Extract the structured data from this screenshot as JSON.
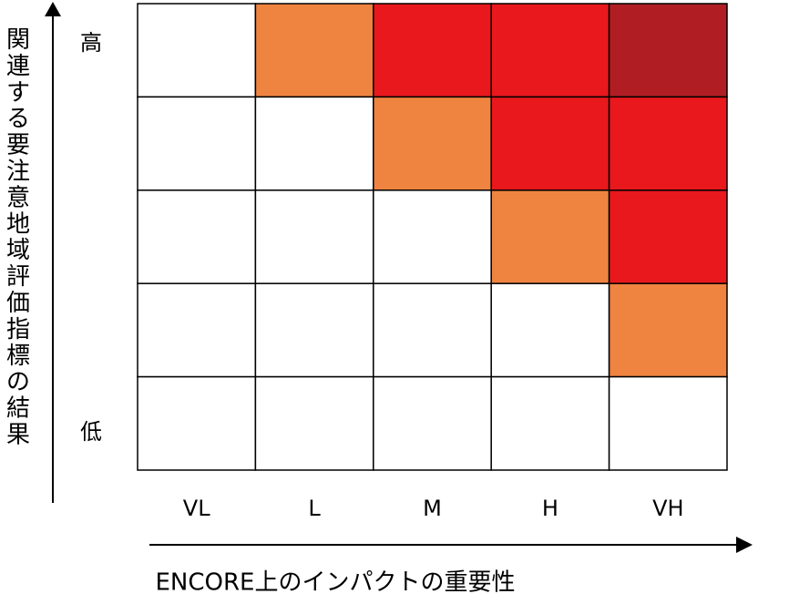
{
  "chart_data": {
    "type": "heatmap",
    "xlabel": "ENCORE上のインパクトの重要性",
    "ylabel": "関連する要注意地域評価指標の結果",
    "x_categories": [
      "VL",
      "L",
      "M",
      "H",
      "VH"
    ],
    "y_top_label": "高",
    "y_bottom_label": "低",
    "rows": 5,
    "cols": 5,
    "levels_top_to_bottom": [
      [
        0,
        1,
        2,
        2,
        3
      ],
      [
        0,
        0,
        1,
        2,
        2
      ],
      [
        0,
        0,
        0,
        1,
        2
      ],
      [
        0,
        0,
        0,
        0,
        1
      ],
      [
        0,
        0,
        0,
        0,
        0
      ]
    ],
    "level_colors": [
      "#ffffff",
      "#ef8440",
      "#e8181c",
      "#b01e24"
    ],
    "grid": true,
    "legend": "none"
  }
}
